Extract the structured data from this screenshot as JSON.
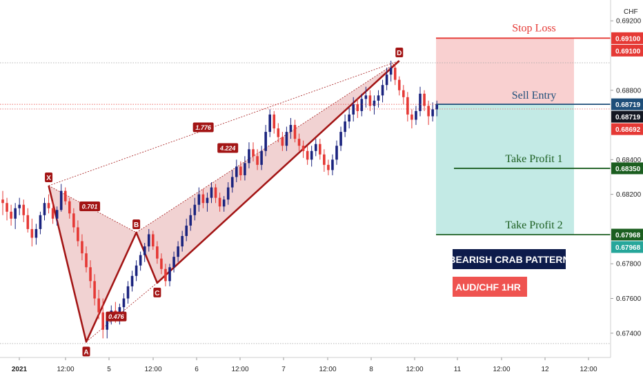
{
  "chart_data": {
    "type": "candlestick",
    "symbol": "AUD/CHF",
    "timeframe": "1HR",
    "currency": "CHF",
    "pattern_name": "BEARISH CRAB PATTERN",
    "pair_label": "AUD/CHF   1HR",
    "ylim": [
      0.6726,
      0.6932
    ],
    "y_ticks": [
      "0.69200",
      "0.68800",
      "0.68400",
      "0.68200",
      "0.67800",
      "0.67600",
      "0.67400"
    ],
    "x_ticks": [
      "2021",
      "12:00",
      "5",
      "12:00",
      "6",
      "12:00",
      "7",
      "12:00",
      "8",
      "12:00",
      "11",
      "12:00",
      "12",
      "12:00"
    ],
    "pattern_points": [
      {
        "label": "X",
        "price": 0.6825
      },
      {
        "label": "A",
        "price": 0.6735
      },
      {
        "label": "B",
        "price": 0.6798
      },
      {
        "label": "C",
        "price": 0.6769
      },
      {
        "label": "D",
        "price": 0.6897
      }
    ],
    "ratios": [
      {
        "label": "0.701"
      },
      {
        "label": "0.476"
      },
      {
        "label": "1.776"
      },
      {
        "label": "4.224"
      }
    ],
    "levels": [
      {
        "name": "Stop Loss",
        "price": "0.69100",
        "value": 0.691,
        "color": "#e53935"
      },
      {
        "name": "Sell Entry",
        "price": "0.68719",
        "value": 0.68719,
        "color": "#1e4e79"
      },
      {
        "name": "Take Profit 1",
        "price": "0.68350",
        "value": 0.6835,
        "color": "#1b5e20"
      },
      {
        "name": "Take Profit 2",
        "price": "0.67968",
        "value": 0.67968,
        "color": "#1b5e20"
      }
    ],
    "axis_tags": [
      {
        "text": "0.69100",
        "value": 0.691,
        "color": "#e53935"
      },
      {
        "text": "0.69100",
        "value": 0.691,
        "color": "#e53935"
      },
      {
        "text": "0.68719",
        "value": 0.68719,
        "color": "#1e4e79"
      },
      {
        "text": "0.68719",
        "value": 0.68719,
        "color": "#131722"
      },
      {
        "text": "0.68692",
        "value": 0.68692,
        "color": "#e53935"
      },
      {
        "text": "0.68350",
        "value": 0.6835,
        "color": "#1b5e20"
      },
      {
        "text": "0.67968",
        "value": 0.67968,
        "color": "#1b5e20"
      },
      {
        "text": "0.67968",
        "value": 0.67968,
        "color": "#26a69a"
      }
    ],
    "colors": {
      "bull": "#1a237e",
      "bear": "#e53935",
      "pattern_line": "#a31515",
      "pattern_fill": "#e8b4b4",
      "stop_zone": "#f8c8c8",
      "profit_zone": "#b9e6e0",
      "info_box_pattern": "#0d1b4b",
      "info_box_pair": "#ef5350"
    },
    "candles": [
      [
        0.6817,
        0.6822,
        0.6808,
        0.6815
      ],
      [
        0.6815,
        0.6818,
        0.6805,
        0.681
      ],
      [
        0.681,
        0.6814,
        0.6802,
        0.6806
      ],
      [
        0.6806,
        0.6815,
        0.68,
        0.6812
      ],
      [
        0.6812,
        0.6818,
        0.6808,
        0.6814
      ],
      [
        0.6814,
        0.6817,
        0.6804,
        0.6808
      ],
      [
        0.6808,
        0.6812,
        0.6798,
        0.68
      ],
      [
        0.68,
        0.6806,
        0.679,
        0.6795
      ],
      [
        0.6795,
        0.6803,
        0.6791,
        0.68
      ],
      [
        0.68,
        0.681,
        0.6797,
        0.6808
      ],
      [
        0.6808,
        0.6818,
        0.6805,
        0.6815
      ],
      [
        0.6815,
        0.682,
        0.6809,
        0.6812
      ],
      [
        0.6812,
        0.6816,
        0.6803,
        0.6806
      ],
      [
        0.6806,
        0.6813,
        0.6802,
        0.6811
      ],
      [
        0.6811,
        0.6826,
        0.681,
        0.6822
      ],
      [
        0.6822,
        0.6824,
        0.6814,
        0.6816
      ],
      [
        0.6816,
        0.6818,
        0.6806,
        0.6809
      ],
      [
        0.6809,
        0.6812,
        0.6798,
        0.6801
      ],
      [
        0.6801,
        0.6805,
        0.679,
        0.6793
      ],
      [
        0.6793,
        0.6797,
        0.6782,
        0.6786
      ],
      [
        0.6786,
        0.679,
        0.6775,
        0.6778
      ],
      [
        0.6778,
        0.6782,
        0.6766,
        0.677
      ],
      [
        0.677,
        0.6774,
        0.6756,
        0.676
      ],
      [
        0.676,
        0.6765,
        0.6748,
        0.6752
      ],
      [
        0.6752,
        0.676,
        0.6737,
        0.6742
      ],
      [
        0.6742,
        0.6752,
        0.6737,
        0.6749
      ],
      [
        0.6749,
        0.6756,
        0.6745,
        0.6753
      ],
      [
        0.6753,
        0.6758,
        0.6746,
        0.6749
      ],
      [
        0.6749,
        0.6757,
        0.6745,
        0.6755
      ],
      [
        0.6755,
        0.6763,
        0.6751,
        0.676
      ],
      [
        0.676,
        0.677,
        0.6757,
        0.6767
      ],
      [
        0.6767,
        0.6776,
        0.6764,
        0.6773
      ],
      [
        0.6773,
        0.6782,
        0.677,
        0.6779
      ],
      [
        0.6779,
        0.6787,
        0.6776,
        0.6785
      ],
      [
        0.6785,
        0.6792,
        0.6781,
        0.679
      ],
      [
        0.679,
        0.68,
        0.6787,
        0.6797
      ],
      [
        0.6797,
        0.6799,
        0.6788,
        0.679
      ],
      [
        0.679,
        0.6793,
        0.678,
        0.6783
      ],
      [
        0.6783,
        0.6786,
        0.6774,
        0.6777
      ],
      [
        0.6777,
        0.678,
        0.6767,
        0.677
      ],
      [
        0.677,
        0.678,
        0.6767,
        0.6778
      ],
      [
        0.6778,
        0.6787,
        0.6775,
        0.6784
      ],
      [
        0.6784,
        0.6793,
        0.6781,
        0.679
      ],
      [
        0.679,
        0.6799,
        0.6787,
        0.6796
      ],
      [
        0.6796,
        0.6806,
        0.6793,
        0.6802
      ],
      [
        0.6802,
        0.6812,
        0.6799,
        0.6808
      ],
      [
        0.6808,
        0.6818,
        0.6805,
        0.6814
      ],
      [
        0.6814,
        0.6824,
        0.681,
        0.682
      ],
      [
        0.682,
        0.6823,
        0.6812,
        0.6815
      ],
      [
        0.6815,
        0.6821,
        0.681,
        0.6818
      ],
      [
        0.6818,
        0.6827,
        0.6815,
        0.6824
      ],
      [
        0.6824,
        0.6826,
        0.6815,
        0.6818
      ],
      [
        0.6818,
        0.6821,
        0.681,
        0.6813
      ],
      [
        0.6813,
        0.6819,
        0.681,
        0.6817
      ],
      [
        0.6817,
        0.6827,
        0.6814,
        0.6824
      ],
      [
        0.6824,
        0.6834,
        0.6821,
        0.683
      ],
      [
        0.683,
        0.684,
        0.6827,
        0.6836
      ],
      [
        0.6836,
        0.6839,
        0.6828,
        0.6831
      ],
      [
        0.6831,
        0.6842,
        0.6828,
        0.6838
      ],
      [
        0.6838,
        0.685,
        0.6835,
        0.6846
      ],
      [
        0.6846,
        0.685,
        0.6839,
        0.6842
      ],
      [
        0.6842,
        0.6846,
        0.6834,
        0.6837
      ],
      [
        0.6837,
        0.6848,
        0.6834,
        0.6845
      ],
      [
        0.6845,
        0.686,
        0.6842,
        0.6856
      ],
      [
        0.6856,
        0.6869,
        0.6853,
        0.6866
      ],
      [
        0.6866,
        0.6868,
        0.6855,
        0.6858
      ],
      [
        0.6858,
        0.6861,
        0.685,
        0.6853
      ],
      [
        0.6853,
        0.6856,
        0.6845,
        0.6848
      ],
      [
        0.6848,
        0.6859,
        0.6845,
        0.6856
      ],
      [
        0.6856,
        0.6864,
        0.6852,
        0.686
      ],
      [
        0.686,
        0.6863,
        0.685,
        0.6852
      ],
      [
        0.6852,
        0.6855,
        0.6845,
        0.6848
      ],
      [
        0.6848,
        0.6851,
        0.6841,
        0.6845
      ],
      [
        0.6845,
        0.6848,
        0.6837,
        0.684
      ],
      [
        0.684,
        0.6848,
        0.6836,
        0.6845
      ],
      [
        0.6845,
        0.6852,
        0.6842,
        0.6849
      ],
      [
        0.6849,
        0.6852,
        0.684,
        0.6843
      ],
      [
        0.6843,
        0.6846,
        0.6833,
        0.6837
      ],
      [
        0.6837,
        0.684,
        0.6831,
        0.6834
      ],
      [
        0.6834,
        0.6843,
        0.6831,
        0.684
      ],
      [
        0.684,
        0.6851,
        0.6837,
        0.6848
      ],
      [
        0.6848,
        0.6859,
        0.6845,
        0.6856
      ],
      [
        0.6856,
        0.6866,
        0.6853,
        0.6862
      ],
      [
        0.6862,
        0.687,
        0.6858,
        0.6866
      ],
      [
        0.6866,
        0.6876,
        0.6862,
        0.6872
      ],
      [
        0.6872,
        0.6875,
        0.6864,
        0.6868
      ],
      [
        0.6868,
        0.6878,
        0.6865,
        0.6875
      ],
      [
        0.6875,
        0.6882,
        0.687,
        0.6877
      ],
      [
        0.6877,
        0.688,
        0.6868,
        0.6871
      ],
      [
        0.6871,
        0.6877,
        0.6866,
        0.6874
      ],
      [
        0.6874,
        0.688,
        0.687,
        0.6877
      ],
      [
        0.6877,
        0.6886,
        0.6873,
        0.6883
      ],
      [
        0.6883,
        0.6893,
        0.688,
        0.6889
      ],
      [
        0.6889,
        0.6897,
        0.6885,
        0.6893
      ],
      [
        0.6893,
        0.6895,
        0.6883,
        0.6886
      ],
      [
        0.6886,
        0.6888,
        0.6877,
        0.688
      ],
      [
        0.688,
        0.6883,
        0.6872,
        0.6876
      ],
      [
        0.6876,
        0.6879,
        0.6862,
        0.6866
      ],
      [
        0.6866,
        0.6869,
        0.6858,
        0.6863
      ],
      [
        0.6863,
        0.6871,
        0.686,
        0.6868
      ],
      [
        0.6868,
        0.6882,
        0.6865,
        0.6878
      ],
      [
        0.6878,
        0.688,
        0.6868,
        0.6871
      ],
      [
        0.6871,
        0.6874,
        0.686,
        0.6865
      ],
      [
        0.6865,
        0.6873,
        0.6862,
        0.6869
      ],
      [
        0.6869,
        0.6874,
        0.6865,
        0.6872
      ]
    ]
  }
}
